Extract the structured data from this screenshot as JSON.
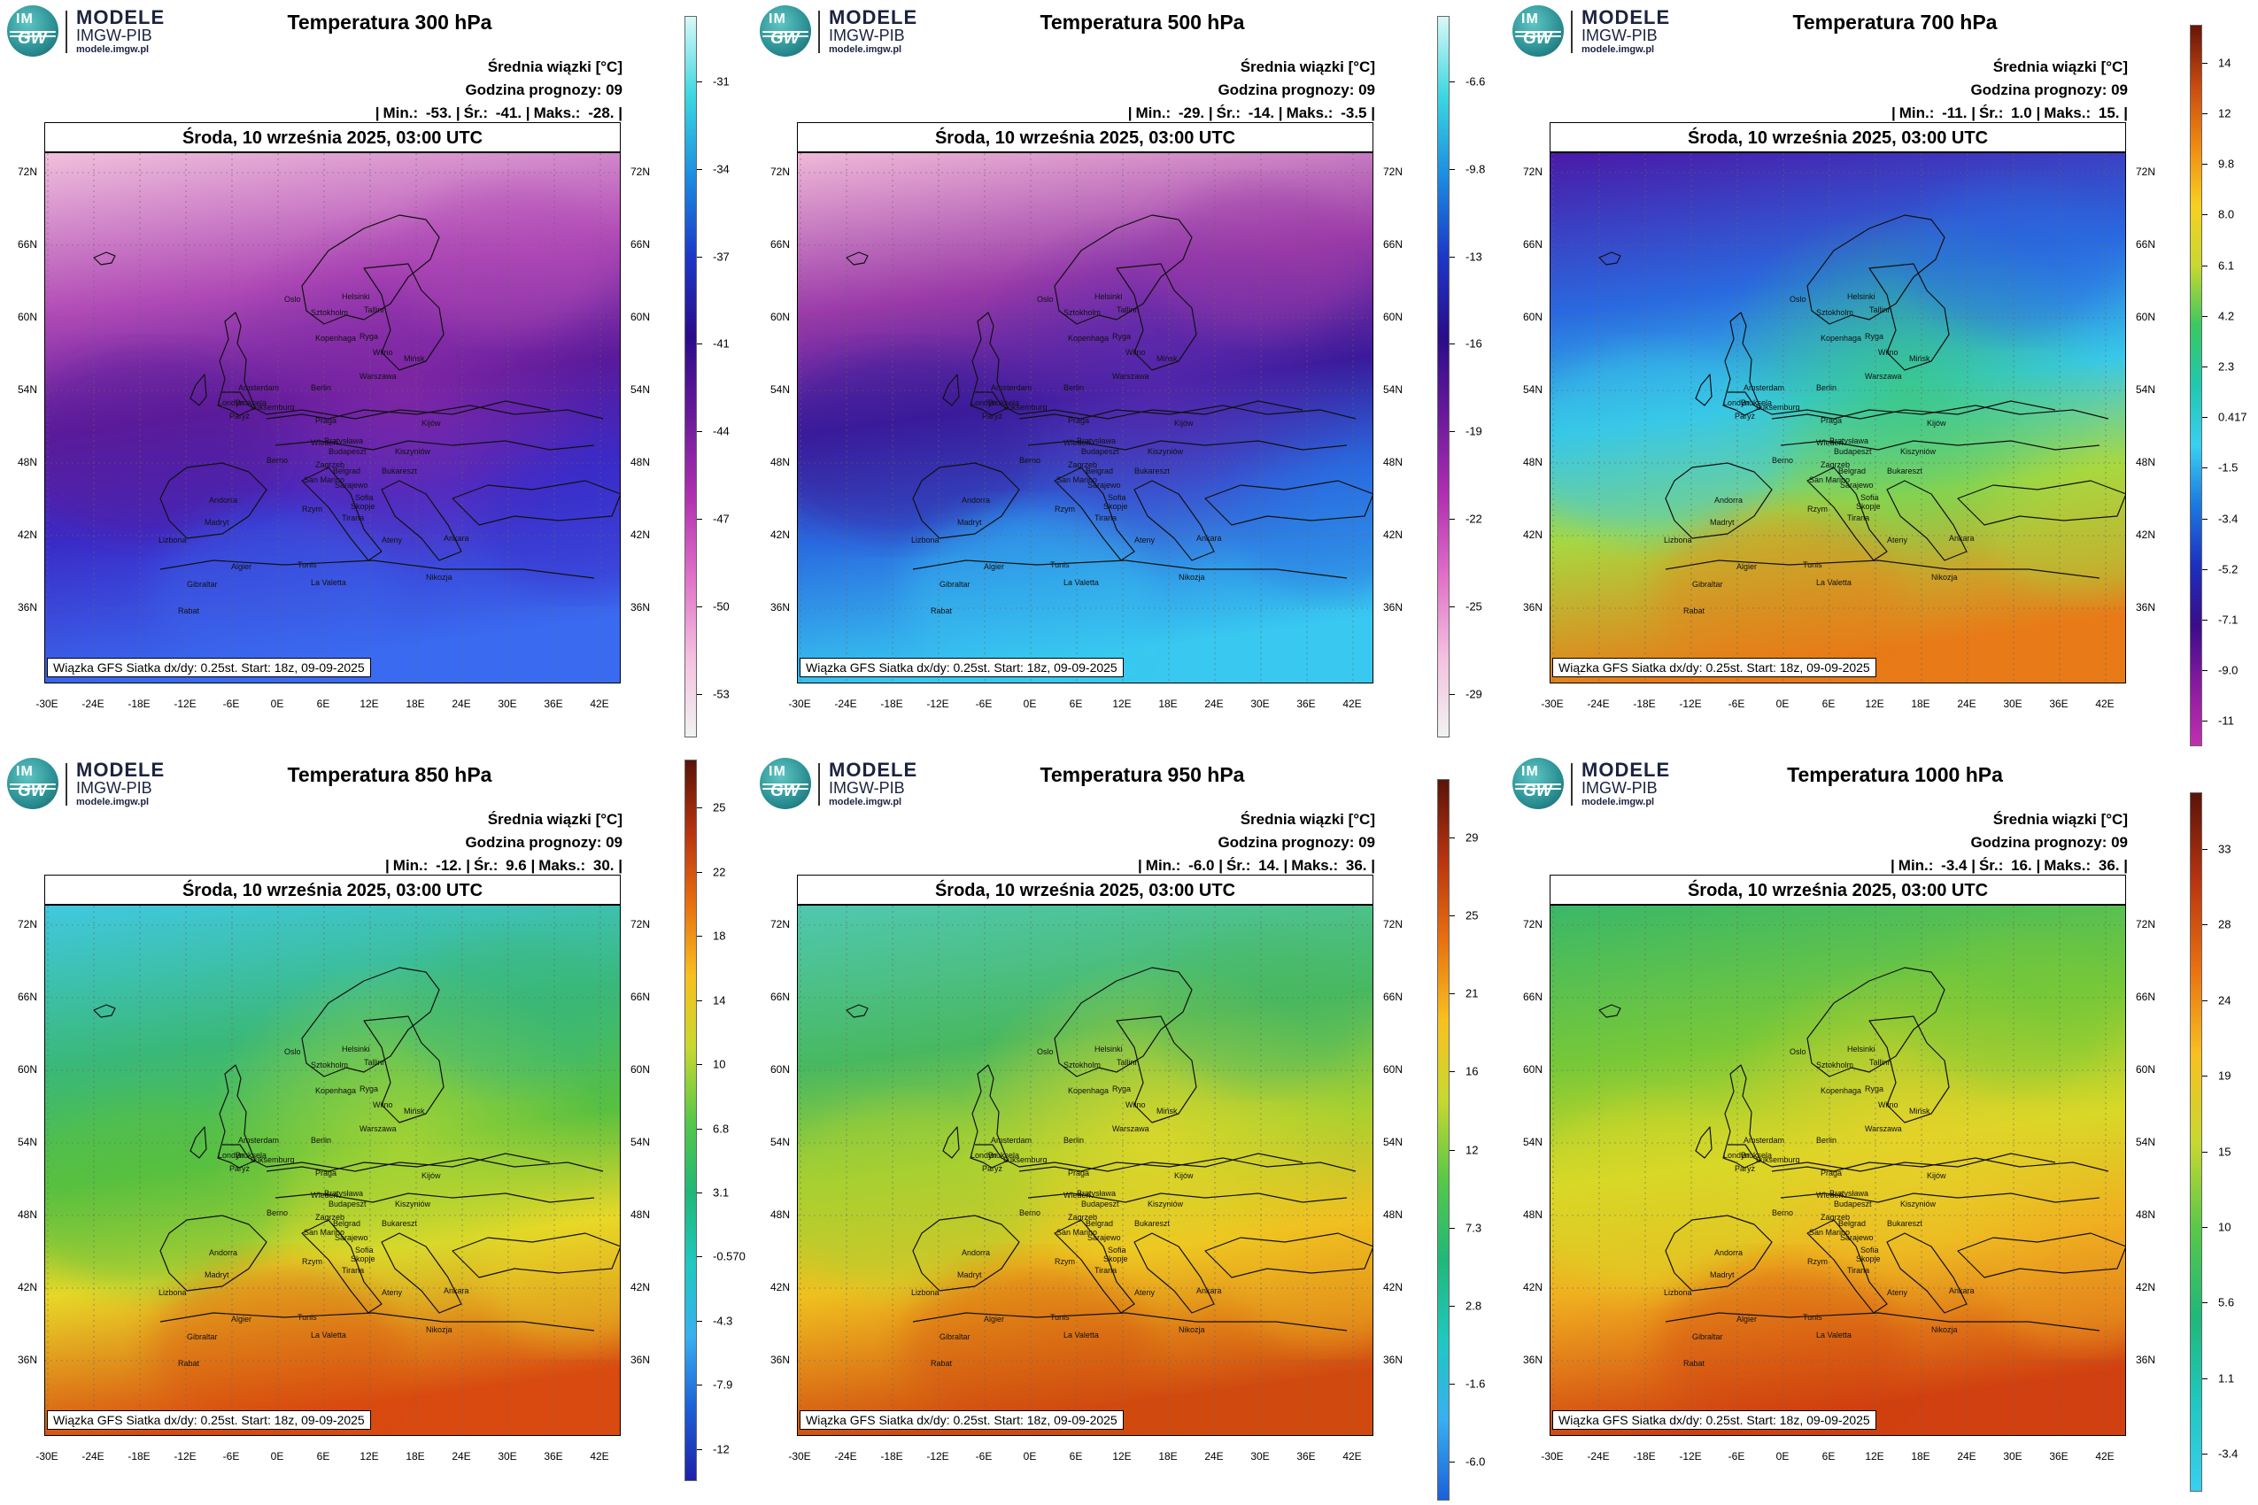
{
  "logo": {
    "title": "MODELE",
    "subtitle": "IMGW-PIB",
    "url": "modele.imgw.pl",
    "badge_top": "IM",
    "badge_bottom": "GW"
  },
  "common": {
    "header_line1": "Średnia wiązki [°C]",
    "header_line2": "Godzina prognozy: 09",
    "date": "Środa, 10 września 2025, 03:00 UTC",
    "footer": "Wiązka GFS Siatka dx/dy: 0.25st. Start: 18z, 09-09-2025",
    "lat_labels": [
      "72N",
      "66N",
      "60N",
      "54N",
      "48N",
      "42N",
      "36N"
    ],
    "lon_labels": [
      "-30E",
      "-24E",
      "-18E",
      "-12E",
      "-6E",
      "0E",
      "6E",
      "12E",
      "18E",
      "24E",
      "30E",
      "36E",
      "42E"
    ]
  },
  "cities": [
    "Oslo",
    "Sztokholm",
    "Helsinki",
    "Tallinn",
    "Ryga",
    "Kopenhaga",
    "Wilno",
    "Mińsk",
    "Amsterdam",
    "Berlin",
    "Warszawa",
    "Londyn",
    "Bruksela",
    "Luksemburg",
    "Paryż",
    "Praga",
    "Kijów",
    "Wiedeń",
    "Bratysława",
    "Budapeszt",
    "Kiszyniów",
    "Berno",
    "Zagrzeb",
    "Belgrad",
    "Bukareszt",
    "San Marino",
    "Sarajewo",
    "Sofia",
    "Rzym",
    "Skopje",
    "Tirana",
    "Andorra",
    "Madryt",
    "Ateny",
    "Ankara",
    "Lizbona",
    "Algier",
    "Tunis",
    "La Valetta",
    "Nikozja",
    "Gibraltar",
    "Rabat"
  ],
  "panels": [
    {
      "title": "Temperatura 300 hPa",
      "stats": {
        "min": "-53.",
        "avg": "-41.",
        "max": "-28."
      },
      "colorbar": {
        "ticks": [
          "-31",
          "-34",
          "-37",
          "-41",
          "-44",
          "-47",
          "-50",
          "-53"
        ],
        "colors": [
          "#d8f8f8",
          "#3ad7e0",
          "#1c8ce0",
          "#1c38c8",
          "#2a0c8a",
          "#6a1a9a",
          "#b030b0",
          "#e070c8",
          "#f4c0e0",
          "#f2f2f2"
        ]
      },
      "map": {
        "top": "#f0c0dc",
        "upper": "#b04ab6",
        "middle": "#5a1a9a",
        "lower": "#3a2cc8",
        "bottom": "#3a6af0",
        "accent": "#8a2aa8"
      }
    },
    {
      "title": "Temperatura 500 hPa",
      "stats": {
        "min": "-29.",
        "avg": "-14.",
        "max": "-3.5"
      },
      "colorbar": {
        "ticks": [
          "-6.6",
          "-9.8",
          "-13",
          "-16",
          "-19",
          "-22",
          "-25",
          "-29"
        ],
        "colors": [
          "#d8f8f8",
          "#3ad7e0",
          "#1c8ce0",
          "#1c38c8",
          "#2a0c8a",
          "#6a1a9a",
          "#b030b0",
          "#e070c8",
          "#f4c0e0",
          "#f2f2f2"
        ]
      },
      "map": {
        "top": "#f0b8d8",
        "upper": "#9a3aa8",
        "middle": "#3a1a9a",
        "lower": "#2a6ae0",
        "bottom": "#38c8f0",
        "accent": "#5a2ab0"
      }
    },
    {
      "title": "Temperatura 700 hPa",
      "stats": {
        "min": "-11.",
        "avg": "1.0",
        "max": "15."
      },
      "colorbar": {
        "ticks": [
          "14",
          "12",
          "9.8",
          "8.0",
          "6.1",
          "4.2",
          "2.3",
          "0.417",
          "-1.5",
          "-3.4",
          "-5.2",
          "-7.1",
          "-9.0",
          "-11"
        ],
        "colors": [
          "#6a1408",
          "#c84a10",
          "#f08a10",
          "#f8d020",
          "#c8d830",
          "#3ac860",
          "#20c8b0",
          "#38d0f0",
          "#1c78e0",
          "#1c30c0",
          "#3a0c8a",
          "#8a1aa0",
          "#c030b0"
        ]
      },
      "map": {
        "top": "#4a1aa8",
        "upper": "#2a6ae0",
        "middle": "#38c8e8",
        "lower": "#a8d840",
        "bottom": "#e87a18",
        "accent": "#3ac870"
      }
    },
    {
      "title": "Temperatura 850 hPa",
      "stats": {
        "min": "-12.",
        "avg": "9.6",
        "max": "30."
      },
      "colorbar": {
        "ticks": [
          "25",
          "22",
          "18",
          "14",
          "10",
          "6.8",
          "3.1",
          "-0.570",
          "-4.3",
          "-7.9",
          "-12"
        ],
        "colors": [
          "#5a1408",
          "#b83410",
          "#e87010",
          "#f8c020",
          "#c8d830",
          "#58c848",
          "#20b878",
          "#20c8c0",
          "#38b0f0",
          "#1c60d8",
          "#1c20a8"
        ]
      },
      "map": {
        "top": "#40c8e0",
        "upper": "#3ab878",
        "middle": "#58c040",
        "lower": "#e8d828",
        "bottom": "#d84a10",
        "accent": "#b8d830"
      }
    },
    {
      "title": "Temperatura 950 hPa",
      "stats": {
        "min": "-6.0",
        "avg": "14.",
        "max": "36."
      },
      "colorbar": {
        "ticks": [
          "29",
          "25",
          "21",
          "16",
          "12",
          "7.3",
          "2.8",
          "-1.6",
          "-6.0"
        ],
        "colors": [
          "#5a1408",
          "#b83410",
          "#e87010",
          "#f8c020",
          "#c8d830",
          "#58c848",
          "#20b878",
          "#20c8c0",
          "#38b0f0",
          "#1c60d8"
        ]
      },
      "map": {
        "top": "#50c8b0",
        "upper": "#48b860",
        "middle": "#a8d030",
        "lower": "#f0c020",
        "bottom": "#d04a10",
        "accent": "#e8d828"
      }
    },
    {
      "title": "Temperatura 1000 hPa",
      "stats": {
        "min": "-3.4",
        "avg": "16.",
        "max": "36."
      },
      "colorbar": {
        "ticks": [
          "33",
          "28",
          "24",
          "19",
          "15",
          "10",
          "5.6",
          "1.1",
          "-3.4"
        ],
        "colors": [
          "#5a1408",
          "#b83410",
          "#e87010",
          "#f8c020",
          "#c8d830",
          "#58c848",
          "#20b878",
          "#20c8c0",
          "#38d0f0"
        ]
      },
      "map": {
        "top": "#3ab868",
        "upper": "#78c838",
        "middle": "#d8d828",
        "lower": "#f0b020",
        "bottom": "#d04010",
        "accent": "#e8d028"
      }
    }
  ]
}
